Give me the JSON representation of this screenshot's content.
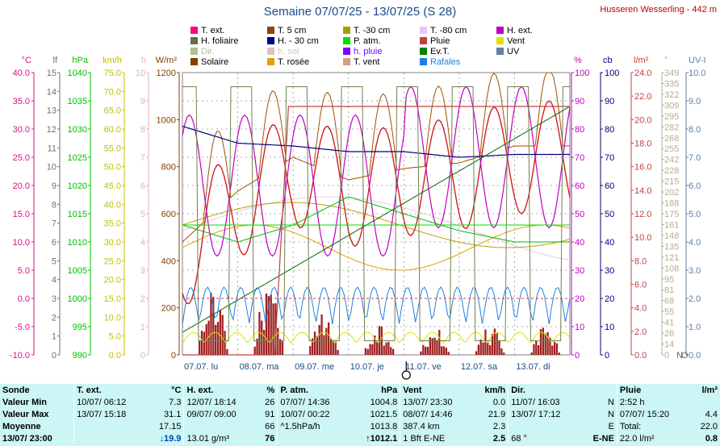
{
  "title": "Semaine 07/07/25 - 13/07/25 (S 28)",
  "station": "Husseren Wesserling - 442 m",
  "legend": [
    {
      "label": "T. ext.",
      "color": "#ff0080"
    },
    {
      "label": "T. 5 cm",
      "color": "#8b4513"
    },
    {
      "label": "T. -30 cm",
      "color": "#a0a000"
    },
    {
      "label": "T. -80 cm",
      "color": "#e8c8f0"
    },
    {
      "label": "H. ext.",
      "color": "#c000c0"
    },
    {
      "label": "H. foliaire",
      "color": "#607040"
    },
    {
      "label": "H. - 30 cm",
      "color": "#000080"
    },
    {
      "label": "P. atm.",
      "color": "#00e000"
    },
    {
      "label": "Pluie",
      "color": "#c04040"
    },
    {
      "label": "Vent",
      "color": "#e0e000"
    },
    {
      "label": "Dir.",
      "color": "#b0c090"
    },
    {
      "label": "h. sol",
      "color": "#e0c0c0"
    },
    {
      "label": "h. pluie",
      "color": "#8000ff"
    },
    {
      "label": "Ev.T.",
      "color": "#008000"
    },
    {
      "label": "UV",
      "color": "#6080a0"
    },
    {
      "label": "Solaire",
      "color": "#804000"
    },
    {
      "label": "T. rosée",
      "color": "#e0a000"
    },
    {
      "label": "T. vent",
      "color": "#d0a080"
    },
    {
      "label": "Rafales",
      "color": "#2080e0"
    }
  ],
  "axes": {
    "temp": {
      "unit": "°C",
      "ticks": [
        "40.0",
        "35.0",
        "30.0",
        "25.0",
        "20.0",
        "15.0",
        "10.0",
        "5.0",
        "0.0",
        "-5.0",
        "-10.0"
      ],
      "color": "#e01080"
    },
    "lf": {
      "unit": "lf",
      "ticks": [
        "15",
        "14",
        "13",
        "12",
        "11",
        "10",
        "9",
        "8",
        "7",
        "6",
        "5",
        "4",
        "3",
        "2",
        "1",
        "0"
      ],
      "color": "#707070"
    },
    "hpa": {
      "unit": "hPa",
      "ticks": [
        "1040",
        "1035",
        "1030",
        "1025",
        "1020",
        "1015",
        "1010",
        "1005",
        "1000",
        "995",
        "990"
      ],
      "color": "#00c000"
    },
    "kmh": {
      "unit": "km/h",
      "ticks": [
        "75.0",
        "70.0",
        "65.0",
        "60.0",
        "55.0",
        "50.0",
        "45.0",
        "40.0",
        "35.0",
        "30.0",
        "25.0",
        "20.0",
        "15.0",
        "10.0",
        "5.0",
        "0.0"
      ],
      "color": "#c0c000"
    },
    "h": {
      "unit": "h",
      "ticks": [
        "10",
        "9",
        "8",
        "7",
        "6",
        "5",
        "4",
        "3",
        "2",
        "1",
        "0"
      ],
      "color": "#e0b0b0"
    },
    "wm2": {
      "unit": "W/m²",
      "ticks": [
        "1200",
        "1000",
        "800",
        "600",
        "400",
        "200",
        "0"
      ],
      "color": "#804000"
    },
    "pct": {
      "unit": "%",
      "ticks": [
        "100",
        "90",
        "80",
        "70",
        "60",
        "50",
        "40",
        "30",
        "20",
        "10",
        "0"
      ],
      "color": "#c000c0"
    },
    "cb": {
      "unit": "cb",
      "ticks": [
        "100",
        "90",
        "80",
        "70",
        "60",
        "50",
        "40",
        "30",
        "20",
        "10",
        "0"
      ],
      "color": "#000080"
    },
    "lm2": {
      "unit": "l/m²",
      "ticks": [
        "24.0",
        "22.0",
        "20.0",
        "18.0",
        "16.0",
        "14.0",
        "12.0",
        "10.0",
        "8.0",
        "6.0",
        "4.0",
        "2.0",
        "0.0"
      ],
      "color": "#c04040"
    },
    "deg": {
      "unit": "°",
      "ticks": [
        "349",
        "335",
        "322",
        "309",
        "295",
        "282",
        "268",
        "255",
        "242",
        "228",
        "215",
        "202",
        "188",
        "175",
        "161",
        "148",
        "135",
        "121",
        "108",
        "95",
        "81",
        "68",
        "55",
        "41",
        "28",
        "14",
        "0"
      ],
      "color": "#b0b090"
    },
    "uv": {
      "unit": "UV-I",
      "ticks": [
        "10.0",
        "9.0",
        "8.0",
        "7.0",
        "6.0",
        "5.0",
        "4.0",
        "3.0",
        "2.0",
        "1.0",
        "0.0"
      ],
      "color": "#6080a0"
    },
    "dirN": [
      "N",
      "O",
      "N"
    ]
  },
  "days": [
    "07.07. lu",
    "08.07. ma",
    "09.07. me",
    "10.07. je",
    "11.07. ve",
    "12.07. sa",
    "13.07. di"
  ],
  "chart_data": {
    "type": "line",
    "x": [
      "07.07.",
      "08.07.",
      "09.07.",
      "10.07.",
      "11.07.",
      "12.07.",
      "13.07."
    ],
    "series": [
      {
        "name": "T. ext.",
        "values": [
          13,
          22,
          28,
          24,
          26,
          27,
          30
        ]
      },
      {
        "name": "H. ext.",
        "values": [
          90,
          60,
          70,
          85,
          88,
          90,
          91
        ]
      },
      {
        "name": "H. - 30 cm",
        "values": [
          81,
          75,
          74,
          72,
          72,
          70,
          71
        ]
      },
      {
        "name": "P. atm.",
        "values": [
          1013,
          1010,
          1013,
          1018,
          1015,
          1012,
          1010
        ]
      },
      {
        "name": "Pluie",
        "values": [
          0,
          20,
          22,
          22,
          22,
          22,
          22
        ]
      }
    ]
  },
  "table": {
    "headers": [
      "Sonde",
      "T. ext.",
      "°C",
      "H. ext.",
      "%",
      "P. atm.",
      "hPa",
      "Vent",
      "km/h",
      "Dir.",
      "",
      "Pluie",
      "l/m²"
    ],
    "rows": [
      {
        "label": "Valeur Min",
        "c": [
          "10/07/  06:12",
          "7.3",
          "12/07/  18:14",
          "26",
          "07/07/  14:36",
          "1004.8",
          "13/07/  23:30",
          "0.0",
          "11/07/  16:03",
          "N",
          "2:52 h",
          ""
        ]
      },
      {
        "label": "Valeur Max",
        "c": [
          "13/07/  15:18",
          "31.1",
          "09/07/  09:00",
          "91",
          "10/07/  00:22",
          "1021.5",
          "08/07/  14:46",
          "21.9",
          "13/07/  17:12",
          "N",
          "07/07/  15:20",
          "4.4"
        ]
      },
      {
        "label": "Moyenne",
        "c": [
          "",
          "17.15",
          "",
          "66",
          "^1.5hPa/h",
          "1013.8",
          "387.4 km",
          "2.3",
          "",
          "E",
          "Total:",
          "22.0"
        ]
      },
      {
        "label": "13/07/  23:00",
        "c": [
          "",
          "↓19.9",
          "13.01 g/m³",
          "76",
          "",
          "↑1012.1",
          "1 Bft E-NE",
          "2.5",
          "68 °",
          "E-NE",
          "22.0 l/m²",
          "0.8"
        ]
      }
    ]
  }
}
